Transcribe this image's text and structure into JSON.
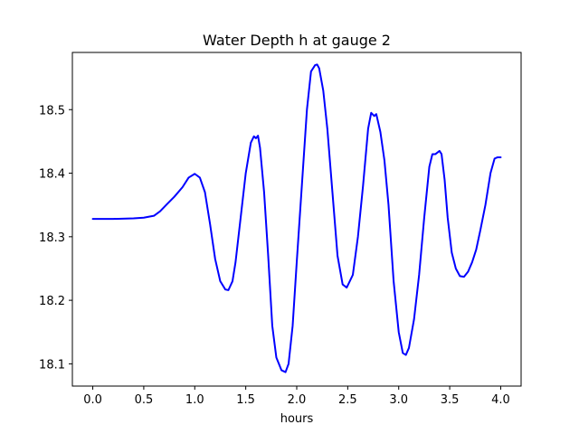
{
  "chart_data": {
    "type": "line",
    "title": "Water Depth h at gauge 2",
    "xlabel": "hours",
    "ylabel": "",
    "xlim": [
      -0.2,
      4.2
    ],
    "ylim": [
      18.065,
      18.59
    ],
    "xticks": [
      0.0,
      0.5,
      1.0,
      1.5,
      2.0,
      2.5,
      3.0,
      3.5,
      4.0
    ],
    "xtick_labels": [
      "0.0",
      "0.5",
      "1.0",
      "1.5",
      "2.0",
      "2.5",
      "3.0",
      "3.5",
      "4.0"
    ],
    "yticks": [
      18.1,
      18.2,
      18.3,
      18.4,
      18.5
    ],
    "ytick_labels": [
      "18.1",
      "18.2",
      "18.3",
      "18.4",
      "18.5"
    ],
    "grid": false,
    "legend": "none",
    "series": [
      {
        "color": "#0000ff",
        "x": [
          0.0,
          0.2,
          0.4,
          0.5,
          0.6,
          0.66,
          0.72,
          0.8,
          0.88,
          0.94,
          1.0,
          1.05,
          1.1,
          1.15,
          1.2,
          1.25,
          1.3,
          1.33,
          1.37,
          1.4,
          1.45,
          1.5,
          1.55,
          1.58,
          1.6,
          1.62,
          1.64,
          1.68,
          1.72,
          1.76,
          1.8,
          1.85,
          1.89,
          1.92,
          1.96,
          2.0,
          2.05,
          2.1,
          2.14,
          2.18,
          2.2,
          2.22,
          2.26,
          2.3,
          2.35,
          2.4,
          2.45,
          2.49,
          2.52,
          2.55,
          2.6,
          2.65,
          2.7,
          2.73,
          2.76,
          2.78,
          2.82,
          2.86,
          2.9,
          2.95,
          3.0,
          3.04,
          3.07,
          3.1,
          3.15,
          3.2,
          3.25,
          3.3,
          3.33,
          3.36,
          3.4,
          3.42,
          3.45,
          3.48,
          3.52,
          3.56,
          3.6,
          3.64,
          3.68,
          3.72,
          3.76,
          3.8,
          3.85,
          3.9,
          3.94,
          3.97,
          4.0
        ],
        "y": [
          18.328,
          18.328,
          18.329,
          18.33,
          18.333,
          18.34,
          18.35,
          18.363,
          18.378,
          18.393,
          18.399,
          18.393,
          18.37,
          18.32,
          18.265,
          18.23,
          18.217,
          18.216,
          18.23,
          18.26,
          18.33,
          18.4,
          18.448,
          18.458,
          18.455,
          18.459,
          18.44,
          18.37,
          18.27,
          18.16,
          18.11,
          18.09,
          18.087,
          18.1,
          18.16,
          18.26,
          18.38,
          18.5,
          18.56,
          18.57,
          18.571,
          18.565,
          18.53,
          18.47,
          18.37,
          18.27,
          18.225,
          18.22,
          18.23,
          18.24,
          18.3,
          18.38,
          18.47,
          18.495,
          18.49,
          18.493,
          18.465,
          18.42,
          18.35,
          18.23,
          18.15,
          18.117,
          18.114,
          18.125,
          18.17,
          18.24,
          18.33,
          18.41,
          18.43,
          18.43,
          18.435,
          18.43,
          18.39,
          18.33,
          18.275,
          18.25,
          18.238,
          18.237,
          18.245,
          18.26,
          18.28,
          18.31,
          18.35,
          18.4,
          18.423,
          18.425,
          18.425
        ]
      }
    ]
  }
}
